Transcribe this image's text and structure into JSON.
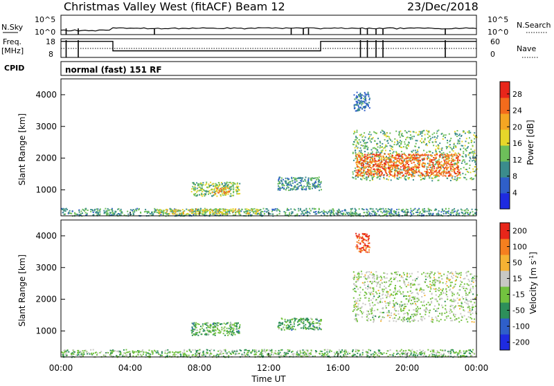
{
  "header": {
    "station": "Christmas Valley West (fitACF)",
    "beam": "Beam 12",
    "date": "23/Dec/2018"
  },
  "strips": {
    "nsky_label": "N.Sky",
    "nsearch_label": "N.Search",
    "nsky_ticks": [
      "10^5",
      "10^0"
    ],
    "nsearch_ticks": [
      "10^5",
      "10^0"
    ],
    "freq_label_1": "Freq.",
    "freq_label_2": "[MHz]",
    "freq_ticks": [
      "18",
      "8"
    ],
    "nave_label": "Nave",
    "nave_ticks": [
      "60",
      "0"
    ],
    "cpid_label": "CPID",
    "cpid_value": "normal (fast) 151 RF",
    "frequency_mhz": [
      {
        "t": 0.0,
        "v": 16.6
      },
      {
        "t": 3.0,
        "v": 16.6
      },
      {
        "t": 3.0,
        "v": 11.5
      },
      {
        "t": 15.0,
        "v": 11.5
      },
      {
        "t": 15.0,
        "v": 16.6
      },
      {
        "t": 24.0,
        "v": 16.6
      }
    ],
    "nave_level": 29
  },
  "chart_data": [
    {
      "type": "heatmap",
      "panel": "power",
      "ylabel": "Slant Range [km]",
      "yticks": [
        "1000",
        "2000",
        "3000",
        "4000"
      ],
      "ylim": [
        180,
        4500
      ],
      "xlim": [
        0,
        24
      ],
      "colorbar_label": "Power [dB]",
      "colorbar_ticks": [
        "4",
        "8",
        "12",
        "16",
        "20",
        "24",
        "28"
      ],
      "colorbar_range": [
        0,
        31
      ],
      "colors": [
        "#1e2be0",
        "#2f5fc9",
        "#3b8c8c",
        "#6dbf5a",
        "#e6d72a",
        "#f5a623",
        "#f36b1c",
        "#e8261a"
      ],
      "scatter_regions": [
        {
          "t0": 0.0,
          "t1": 24.0,
          "r0": 190,
          "r1": 430,
          "level": 11
        },
        {
          "t0": 5.5,
          "t1": 11.5,
          "r0": 250,
          "r1": 420,
          "level": 17
        },
        {
          "t0": 7.5,
          "t1": 10.3,
          "r0": 820,
          "r1": 1260,
          "level": 14
        },
        {
          "t0": 8.7,
          "t1": 9.7,
          "r0": 870,
          "r1": 1080,
          "level": 22
        },
        {
          "t0": 12.5,
          "t1": 15.0,
          "r0": 1000,
          "r1": 1420,
          "level": 10
        },
        {
          "t0": 16.8,
          "t1": 24.0,
          "r0": 1300,
          "r1": 2900,
          "level": 13
        },
        {
          "t0": 17.0,
          "t1": 23.0,
          "r0": 1450,
          "r1": 2150,
          "level": 25
        },
        {
          "t0": 16.9,
          "t1": 17.8,
          "r0": 3500,
          "r1": 4100,
          "level": 8
        }
      ]
    },
    {
      "type": "heatmap",
      "panel": "velocity",
      "ylabel": "Slant Range [km]",
      "yticks": [
        "1000",
        "2000",
        "3000",
        "4000"
      ],
      "ylim": [
        180,
        4500
      ],
      "xlim": [
        0,
        24
      ],
      "colorbar_label": "Velocity [m s^-1]",
      "colorbar_ticks": [
        "200",
        "100",
        "50",
        "15",
        "-15",
        "-50",
        "-100",
        "-200"
      ],
      "colorbar_range": [
        -250,
        250
      ],
      "colors": [
        "#1e2be0",
        "#2f5fc9",
        "#2d8f5a",
        "#73c23f",
        "#c8c8c4",
        "#f5b233",
        "#f57f1f",
        "#e8261a"
      ],
      "scatter_regions": [
        {
          "t0": 0.0,
          "t1": 24.0,
          "r0": 190,
          "r1": 430,
          "level": -30
        },
        {
          "t0": 7.5,
          "t1": 10.3,
          "r0": 880,
          "r1": 1280,
          "level": -60
        },
        {
          "t0": 12.5,
          "t1": 15.0,
          "r0": 1050,
          "r1": 1420,
          "level": -60
        },
        {
          "t0": 16.8,
          "t1": 24.0,
          "r0": 1300,
          "r1": 2900,
          "level": 0
        },
        {
          "t0": 17.0,
          "t1": 17.8,
          "r0": 3500,
          "r1": 4100,
          "level": 200
        }
      ]
    }
  ],
  "xaxis": {
    "label": "Time UT",
    "ticks": [
      "00:00",
      "04:00",
      "08:00",
      "12:00",
      "16:00",
      "20:00",
      "00:00"
    ]
  }
}
